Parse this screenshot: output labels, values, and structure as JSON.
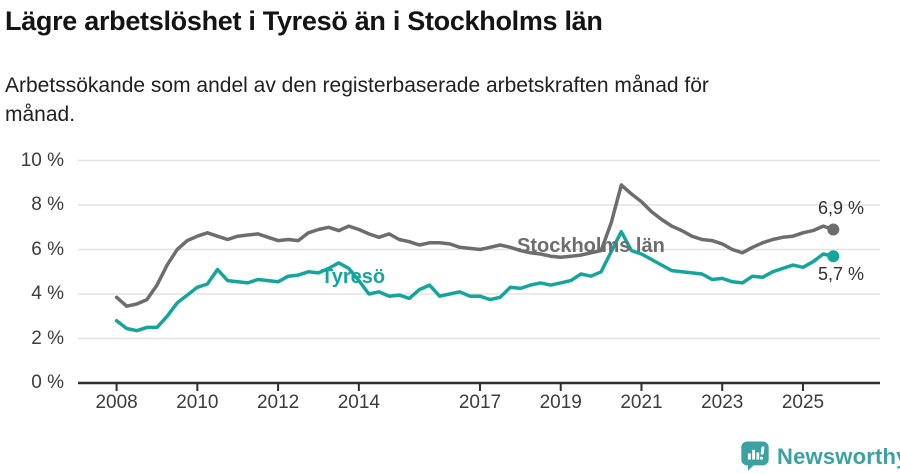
{
  "header": {
    "title": "Lägre arbetslöshet i Tyresö än i Stockholms län",
    "subtitle_line1": "Arbetssökande som andel av den registerbaserade arbetskraften månad för",
    "subtitle_line2": "månad."
  },
  "chart_data": {
    "type": "line",
    "title": "Lägre arbetslöshet i Tyresö än i Stockholms län",
    "subtitle": "Arbetssökande som andel av den registerbaserade arbetskraften månad för månad.",
    "unit": "%",
    "ylim": [
      0,
      10
    ],
    "grid": true,
    "legend_position": "inline-labels",
    "x": [
      2008,
      2008.25,
      2008.5,
      2008.75,
      2009,
      2009.25,
      2009.5,
      2009.75,
      2010,
      2010.25,
      2010.5,
      2010.75,
      2011,
      2011.25,
      2011.5,
      2011.75,
      2012,
      2012.25,
      2012.5,
      2012.75,
      2013,
      2013.25,
      2013.5,
      2013.75,
      2014,
      2014.25,
      2014.5,
      2014.75,
      2015,
      2015.25,
      2015.5,
      2015.75,
      2016,
      2016.25,
      2016.5,
      2016.75,
      2017,
      2017.25,
      2017.5,
      2017.75,
      2018,
      2018.25,
      2018.5,
      2018.75,
      2019,
      2019.25,
      2019.5,
      2019.75,
      2020,
      2020.25,
      2020.5,
      2020.75,
      2021,
      2021.25,
      2021.5,
      2021.75,
      2022,
      2022.25,
      2022.5,
      2022.75,
      2023,
      2023.25,
      2023.5,
      2023.75,
      2024,
      2024.25,
      2024.5,
      2024.75,
      2025,
      2025.25,
      2025.5,
      2025.75
    ],
    "series": [
      {
        "id": "stockholms-lan",
        "name": "Stockholms län",
        "color": "#6d6d6d",
        "end_label": "6,9 %",
        "end_value": 6.9,
        "values": [
          3.85,
          3.45,
          3.55,
          3.75,
          4.4,
          5.3,
          6.0,
          6.4,
          6.6,
          6.75,
          6.6,
          6.45,
          6.6,
          6.65,
          6.7,
          6.55,
          6.4,
          6.45,
          6.4,
          6.75,
          6.9,
          7.0,
          6.85,
          7.05,
          6.9,
          6.7,
          6.55,
          6.7,
          6.45,
          6.35,
          6.2,
          6.3,
          6.3,
          6.25,
          6.1,
          6.05,
          6.0,
          6.1,
          6.2,
          6.1,
          5.95,
          5.85,
          5.8,
          5.7,
          5.65,
          5.7,
          5.75,
          5.85,
          5.95,
          7.2,
          8.9,
          8.5,
          8.15,
          7.7,
          7.35,
          7.05,
          6.85,
          6.6,
          6.45,
          6.4,
          6.25,
          6.0,
          5.85,
          6.1,
          6.3,
          6.45,
          6.55,
          6.6,
          6.75,
          6.85,
          7.05,
          6.9
        ]
      },
      {
        "id": "tyreso",
        "name": "Tyresö",
        "color": "#16a59c",
        "end_label": "5,7 %",
        "end_value": 5.7,
        "values": [
          2.8,
          2.45,
          2.35,
          2.5,
          2.5,
          3.0,
          3.6,
          3.95,
          4.3,
          4.45,
          5.1,
          4.6,
          4.55,
          4.5,
          4.65,
          4.6,
          4.55,
          4.8,
          4.85,
          5.0,
          4.95,
          5.15,
          5.4,
          5.15,
          4.6,
          4.0,
          4.1,
          3.9,
          3.95,
          3.8,
          4.2,
          4.4,
          3.9,
          4.0,
          4.1,
          3.9,
          3.9,
          3.75,
          3.85,
          4.3,
          4.25,
          4.4,
          4.5,
          4.4,
          4.5,
          4.6,
          4.9,
          4.8,
          5.0,
          5.9,
          6.8,
          5.95,
          5.8,
          5.55,
          5.3,
          5.05,
          5.0,
          4.95,
          4.9,
          4.65,
          4.7,
          4.55,
          4.5,
          4.8,
          4.75,
          5.0,
          5.15,
          5.3,
          5.2,
          5.45,
          5.8,
          5.7
        ]
      }
    ],
    "xticks": [
      {
        "value": 2008,
        "label": "2008"
      },
      {
        "value": 2010,
        "label": "2010"
      },
      {
        "value": 2012,
        "label": "2012"
      },
      {
        "value": 2014,
        "label": "2014"
      },
      {
        "value": 2017,
        "label": "2017"
      },
      {
        "value": 2019,
        "label": "2019"
      },
      {
        "value": 2021,
        "label": "2021"
      },
      {
        "value": 2023,
        "label": "2023"
      },
      {
        "value": 2025,
        "label": "2025"
      }
    ],
    "yticks": [
      {
        "value": 0,
        "label": "0 %"
      },
      {
        "value": 2,
        "label": "2 %"
      },
      {
        "value": 4,
        "label": "4 %"
      },
      {
        "value": 6,
        "label": "6 %"
      },
      {
        "value": 8,
        "label": "8 %"
      },
      {
        "value": 10,
        "label": "10 %"
      }
    ],
    "colors": {
      "grid": "#e3e3e3",
      "axis": "#2e2e2e",
      "stockholm_gray": "#6d6d6d",
      "tyreso_teal": "#16a59c"
    }
  },
  "footer": {
    "brand": "Newsworthy",
    "brand_color": "#3ba1a1"
  }
}
